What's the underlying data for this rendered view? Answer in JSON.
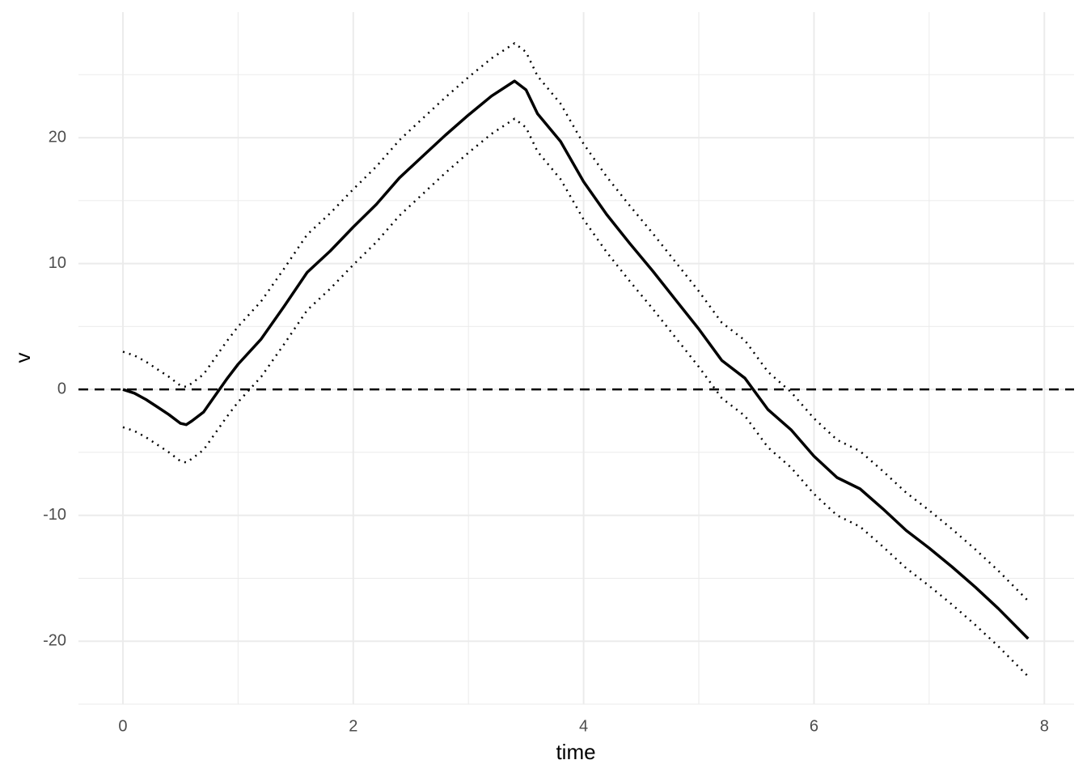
{
  "chart_data": {
    "type": "line",
    "x_label": "time",
    "y_label": "v",
    "x": [
      0,
      0.1,
      0.2,
      0.3,
      0.4,
      0.5,
      0.55,
      0.6,
      0.7,
      0.8,
      0.9,
      1,
      1.2,
      1.4,
      1.6,
      1.8,
      2,
      2.2,
      2.4,
      2.6,
      2.8,
      3,
      3.2,
      3.4,
      3.5,
      3.6,
      3.8,
      4,
      4.2,
      4.4,
      4.6,
      4.8,
      5,
      5.2,
      5.4,
      5.6,
      5.8,
      6,
      6.2,
      6.4,
      6.6,
      6.8,
      7,
      7.2,
      7.4,
      7.6,
      7.86
    ],
    "series": [
      {
        "color": "#000000",
        "style": "solid",
        "values": [
          0,
          -0.3,
          -0.8,
          -1.4,
          -2.0,
          -2.7,
          -2.8,
          -2.5,
          -1.8,
          -0.5,
          0.8,
          2.0,
          4.0,
          6.6,
          9.3,
          11.0,
          12.9,
          14.7,
          16.8,
          18.5,
          20.2,
          21.8,
          23.3,
          24.5,
          23.8,
          21.9,
          19.7,
          16.5,
          13.9,
          11.6,
          9.4,
          7.1,
          4.8,
          2.3,
          0.9,
          -1.6,
          -3.2,
          -5.3,
          -7.0,
          -7.9,
          -9.5,
          -11.2,
          -12.6,
          -14.1,
          -15.7,
          -17.4,
          -19.8
        ]
      },
      {
        "color": "#000000",
        "style": "dotted",
        "values": [
          3,
          2.7,
          2.2,
          1.6,
          1.0,
          0.3,
          0.2,
          0.5,
          1.2,
          2.5,
          3.8,
          5.0,
          7.0,
          9.6,
          12.3,
          14.0,
          15.9,
          17.7,
          19.8,
          21.5,
          23.2,
          24.8,
          26.3,
          27.5,
          26.8,
          24.9,
          22.7,
          19.5,
          16.9,
          14.6,
          12.4,
          10.1,
          7.8,
          5.3,
          3.9,
          1.4,
          -0.2,
          -2.3,
          -4.0,
          -4.9,
          -6.5,
          -8.2,
          -9.6,
          -11.1,
          -12.7,
          -14.4,
          -16.8
        ]
      },
      {
        "color": "#000000",
        "style": "dotted",
        "values": [
          -3,
          -3.3,
          -3.8,
          -4.4,
          -5.0,
          -5.7,
          -5.8,
          -5.5,
          -4.8,
          -3.5,
          -2.2,
          -1.0,
          1.0,
          3.6,
          6.3,
          8.0,
          9.9,
          11.7,
          13.8,
          15.5,
          17.2,
          18.8,
          20.3,
          21.5,
          20.8,
          18.9,
          16.7,
          13.5,
          10.9,
          8.6,
          6.4,
          4.1,
          1.8,
          -0.7,
          -2.1,
          -4.6,
          -6.2,
          -8.3,
          -10.0,
          -10.9,
          -12.5,
          -14.2,
          -15.6,
          -17.1,
          -18.7,
          -20.4,
          -22.8
        ]
      }
    ],
    "reference_line": {
      "value": 0,
      "style": "dashed",
      "color": "#000000"
    },
    "xlim": [
      -0.386,
      8.258
    ],
    "ylim": [
      -25.0,
      29.97
    ],
    "xticks": [
      0,
      2,
      4,
      6,
      8
    ],
    "yticks": [
      -20,
      -10,
      0,
      10,
      20
    ],
    "x_minor_ticks": [
      1,
      3,
      5,
      7
    ],
    "y_minor_ticks": [
      -25,
      -15,
      -5,
      5,
      15,
      25
    ],
    "grid": true
  }
}
